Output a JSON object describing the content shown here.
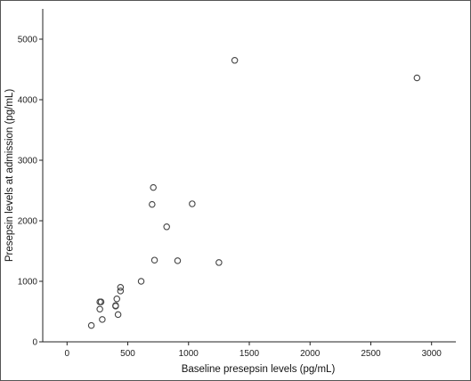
{
  "chart_data": {
    "type": "scatter",
    "title": "",
    "xlabel": "Baseline presepsin levels (pg/mL)",
    "ylabel": "Presepsin levels at admission (pg/mL)",
    "xlim": [
      -200,
      3200
    ],
    "ylim": [
      0,
      5500
    ],
    "xticks": [
      "0",
      "500",
      "1000",
      "1500",
      "2000",
      "2500",
      "3000"
    ],
    "yticks": [
      "0",
      "1000",
      "2000",
      "3000",
      "4000",
      "5000"
    ],
    "grid": false,
    "legend": "none",
    "marker_color": "#444444",
    "series": [
      {
        "x": [
          200,
          270,
          280,
          270,
          290,
          400,
          400,
          410,
          420,
          440,
          440,
          610,
          700,
          710,
          720,
          820,
          910,
          1030,
          1250,
          1380,
          2880
        ],
        "y": [
          270,
          540,
          660,
          660,
          370,
          600,
          590,
          710,
          450,
          840,
          900,
          1000,
          2270,
          2550,
          1350,
          1900,
          1340,
          2280,
          1310,
          4650,
          4360
        ]
      }
    ]
  }
}
